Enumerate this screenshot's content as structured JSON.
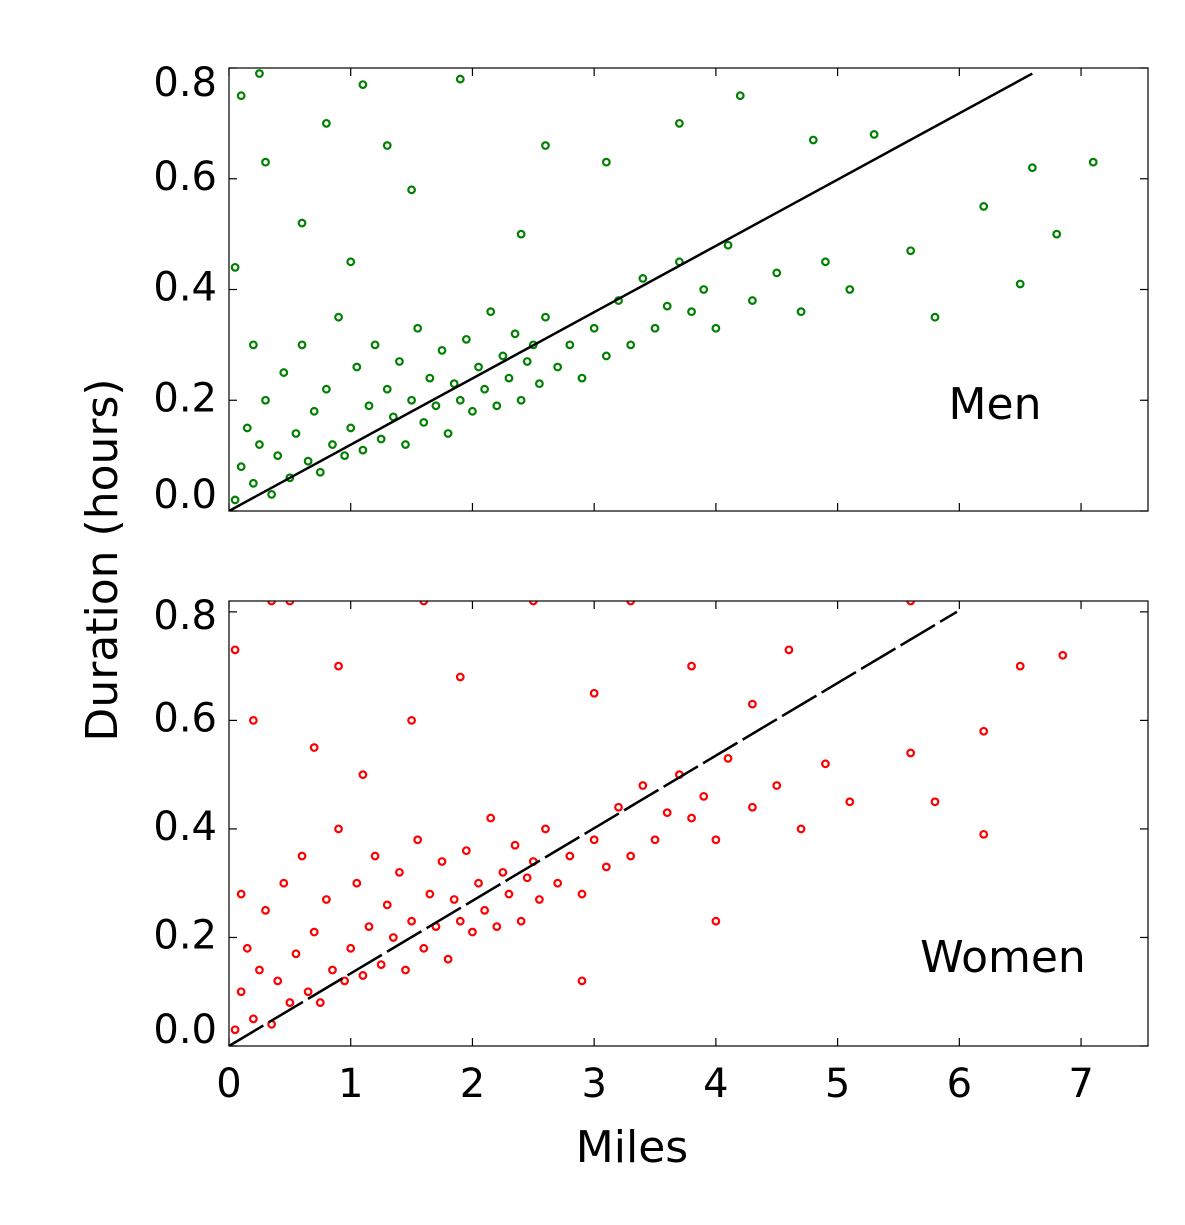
{
  "xlabel": "Miles",
  "ylabel": "Duration (hours)",
  "chart_data": [
    {
      "type": "scatter",
      "annotation": "Men",
      "xlim": [
        0,
        7.55
      ],
      "ylim": [
        0,
        0.8
      ],
      "xticks": [
        0,
        1,
        2,
        3,
        4,
        5,
        6,
        7
      ],
      "yticks": [
        {
          "value": 0,
          "label": "0.0"
        },
        0.2,
        0.4,
        0.6,
        0.8
      ],
      "series": [
        {
          "type": "scatter",
          "color": "#008000",
          "x": [
            0.05,
            0.1,
            0.15,
            0.2,
            0.25,
            0.3,
            0.35,
            0.4,
            0.45,
            0.5,
            0.55,
            0.6,
            0.65,
            0.7,
            0.75,
            0.8,
            0.85,
            0.9,
            0.95,
            1.0,
            1.05,
            1.1,
            1.15,
            1.2,
            1.25,
            1.3,
            1.35,
            1.4,
            1.45,
            1.5,
            1.55,
            1.6,
            1.65,
            1.7,
            1.75,
            1.8,
            1.85,
            1.9,
            1.95,
            2.0,
            2.05,
            2.1,
            2.15,
            2.2,
            2.25,
            2.3,
            2.35,
            2.4,
            2.45,
            2.5,
            2.55,
            2.6,
            2.7,
            2.8,
            2.9,
            3.0,
            3.1,
            3.2,
            3.3,
            3.4,
            3.5,
            3.6,
            3.7,
            3.8,
            3.9,
            4.0,
            4.1,
            4.3,
            4.5,
            4.7,
            4.9,
            5.1,
            5.6,
            5.8,
            6.2,
            6.6,
            7.1,
            6.8,
            0.1,
            0.25,
            1.1,
            1.9,
            4.2,
            0.8,
            0.3,
            1.3,
            2.6,
            3.7,
            0.05,
            0.6,
            1.5,
            2.4,
            4.8,
            5.3,
            6.5,
            0.2,
            1.0,
            3.1
          ],
          "values": [
            0.02,
            0.08,
            0.15,
            0.05,
            0.12,
            0.2,
            0.03,
            0.1,
            0.25,
            0.06,
            0.14,
            0.3,
            0.09,
            0.18,
            0.07,
            0.22,
            0.12,
            0.35,
            0.1,
            0.15,
            0.26,
            0.11,
            0.19,
            0.3,
            0.13,
            0.22,
            0.17,
            0.27,
            0.12,
            0.2,
            0.33,
            0.16,
            0.24,
            0.19,
            0.29,
            0.14,
            0.23,
            0.2,
            0.31,
            0.18,
            0.26,
            0.22,
            0.36,
            0.19,
            0.28,
            0.24,
            0.32,
            0.2,
            0.27,
            0.3,
            0.23,
            0.35,
            0.26,
            0.3,
            0.24,
            0.33,
            0.28,
            0.38,
            0.3,
            0.42,
            0.33,
            0.37,
            0.45,
            0.36,
            0.4,
            0.33,
            0.48,
            0.38,
            0.43,
            0.36,
            0.45,
            0.4,
            0.47,
            0.35,
            0.55,
            0.62,
            0.63,
            0.5,
            0.75,
            0.79,
            0.77,
            0.78,
            0.75,
            0.7,
            0.63,
            0.66,
            0.66,
            0.7,
            0.44,
            0.52,
            0.58,
            0.5,
            0.67,
            0.68,
            0.41,
            0.3,
            0.45,
            0.63
          ]
        },
        {
          "type": "line",
          "color": "#000000",
          "linestyle": "solid",
          "x": [
            0,
            6.6
          ],
          "values": [
            0,
            0.79
          ]
        }
      ]
    },
    {
      "type": "scatter",
      "annotation": "Women",
      "xlim": [
        0,
        7.55
      ],
      "ylim": [
        0,
        0.82
      ],
      "xticks": [
        0,
        1,
        2,
        3,
        4,
        5,
        6,
        7
      ],
      "yticks": [
        {
          "value": 0,
          "label": "0.0"
        },
        0.2,
        0.4,
        0.6,
        0.8
      ],
      "series": [
        {
          "type": "scatter",
          "color": "#ff0000",
          "x": [
            0.05,
            0.1,
            0.15,
            0.2,
            0.25,
            0.3,
            0.35,
            0.4,
            0.45,
            0.5,
            0.55,
            0.6,
            0.65,
            0.7,
            0.75,
            0.8,
            0.85,
            0.9,
            0.95,
            1.0,
            1.05,
            1.1,
            1.15,
            1.2,
            1.25,
            1.3,
            1.35,
            1.4,
            1.45,
            1.5,
            1.55,
            1.6,
            1.65,
            1.7,
            1.75,
            1.8,
            1.85,
            1.9,
            1.95,
            2.0,
            2.05,
            2.1,
            2.15,
            2.2,
            2.25,
            2.3,
            2.35,
            2.4,
            2.45,
            2.5,
            2.55,
            2.6,
            2.7,
            2.8,
            2.9,
            3.0,
            3.1,
            3.2,
            3.3,
            3.4,
            3.5,
            3.6,
            3.7,
            3.8,
            3.9,
            4.0,
            4.1,
            4.3,
            4.5,
            4.7,
            4.9,
            5.1,
            5.6,
            5.8,
            6.2,
            6.5,
            6.85,
            6.2,
            0.05,
            0.35,
            0.5,
            1.6,
            2.5,
            3.3,
            0.9,
            1.9,
            3.0,
            4.3,
            4.6,
            5.6,
            0.2,
            0.7,
            1.5,
            2.9,
            4.0,
            0.1,
            1.1,
            3.8
          ],
          "values": [
            0.03,
            0.1,
            0.18,
            0.05,
            0.14,
            0.25,
            0.04,
            0.12,
            0.3,
            0.08,
            0.17,
            0.35,
            0.1,
            0.21,
            0.08,
            0.27,
            0.14,
            0.4,
            0.12,
            0.18,
            0.3,
            0.13,
            0.22,
            0.35,
            0.15,
            0.26,
            0.2,
            0.32,
            0.14,
            0.23,
            0.38,
            0.18,
            0.28,
            0.22,
            0.34,
            0.16,
            0.27,
            0.23,
            0.36,
            0.21,
            0.3,
            0.25,
            0.42,
            0.22,
            0.32,
            0.28,
            0.37,
            0.23,
            0.31,
            0.34,
            0.27,
            0.4,
            0.3,
            0.35,
            0.28,
            0.38,
            0.33,
            0.44,
            0.35,
            0.48,
            0.38,
            0.43,
            0.5,
            0.42,
            0.46,
            0.38,
            0.53,
            0.44,
            0.48,
            0.4,
            0.52,
            0.45,
            0.54,
            0.45,
            0.39,
            0.7,
            0.72,
            0.58,
            0.73,
            0.82,
            0.82,
            0.82,
            0.82,
            0.82,
            0.7,
            0.68,
            0.65,
            0.63,
            0.73,
            0.82,
            0.6,
            0.55,
            0.6,
            0.12,
            0.23,
            0.28,
            0.5,
            0.7
          ]
        },
        {
          "type": "line",
          "color": "#000000",
          "linestyle": "dashed",
          "x": [
            0,
            5.98
          ],
          "values": [
            0,
            0.8
          ]
        }
      ]
    }
  ]
}
